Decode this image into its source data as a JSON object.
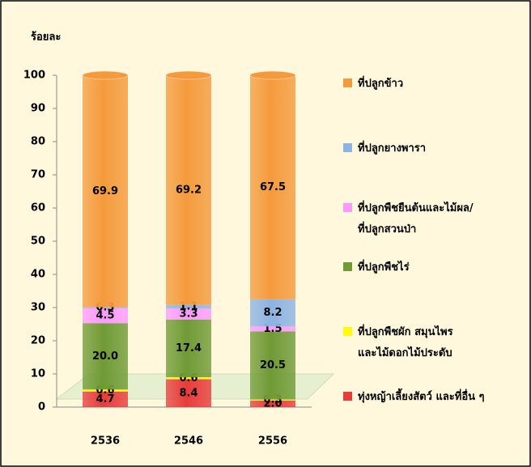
{
  "chart_data": {
    "type": "bar",
    "stacked": true,
    "y_axis_label": "ร้อยละ",
    "categories": [
      "2536",
      "2546",
      "2556"
    ],
    "ylim": [
      0,
      100
    ],
    "yticks": [
      0,
      10,
      20,
      30,
      40,
      50,
      60,
      70,
      80,
      90,
      100
    ],
    "series": [
      {
        "name": "ทุ่งหญ้าเลี้ยงสัตว์ และที่อื่น ๆ",
        "color": "#e83b3b",
        "values": [
          4.7,
          8.4,
          2
        ],
        "value_labels": [
          "4.7",
          "8.4",
          "2.0"
        ]
      },
      {
        "name": "ที่ปลูกพืชผัก สมุนไพร\nและไม้ดอกไม้ประดับ",
        "color": "#ffff00",
        "values": [
          0.6,
          0.6,
          0.3
        ]
      },
      {
        "name": "ที่ปลูกพืชไร่",
        "color": "#6f9a35",
        "values": [
          20,
          17.4,
          20.5
        ],
        "value_labels": [
          "20.0",
          "17.4",
          "20.5"
        ]
      },
      {
        "name": "ที่ปลูกพืชยืนต้นและไม้ผล/\nที่ปลูกสวนป่า",
        "color": "#ff99ff",
        "values": [
          4.5,
          3.3,
          1.5
        ]
      },
      {
        "name": "ที่ปลูกยางพารา",
        "color": "#8db3e2",
        "values": [
          0.3,
          1.1,
          8.2
        ]
      },
      {
        "name": "ที่ปลูกข้าว",
        "color": "#f59a3c",
        "values": [
          69.9,
          69.2,
          67.5
        ]
      }
    ],
    "legend": "right"
  }
}
